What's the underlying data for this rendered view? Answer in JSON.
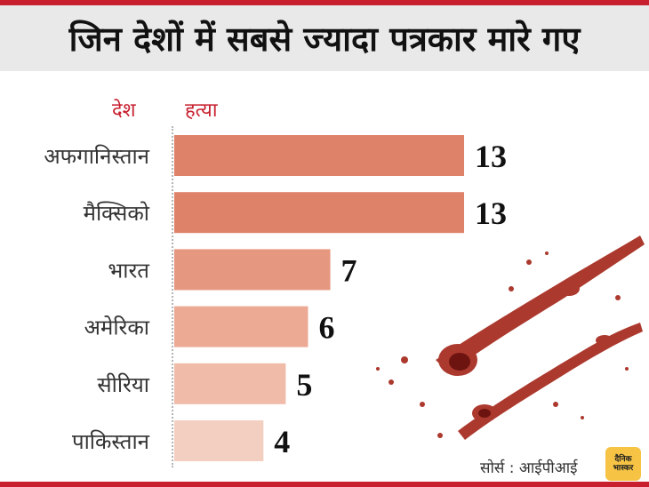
{
  "title": "जिन देशों में सबसे ज्यादा पत्रकार मारे गए",
  "headers": {
    "country": "देश",
    "killed": "हत्या"
  },
  "source": "सोर्स : आईपीआई",
  "logo": {
    "line1": "दैनिक",
    "line2": "भास्कर"
  },
  "colors": {
    "accent": "#c8202f"
  },
  "chart_data": {
    "type": "bar",
    "orientation": "horizontal",
    "categories": [
      "अफगानिस्तान",
      "मैक्सिको",
      "भारत",
      "अमेरिका",
      "सीरिया",
      "पाकिस्तान"
    ],
    "values": [
      13,
      13,
      7,
      6,
      5,
      4
    ],
    "colors": [
      "#df826a",
      "#df826a",
      "#e6977f",
      "#eca994",
      "#f0bca9",
      "#f3cfc2"
    ],
    "xlim": [
      0,
      13
    ]
  }
}
